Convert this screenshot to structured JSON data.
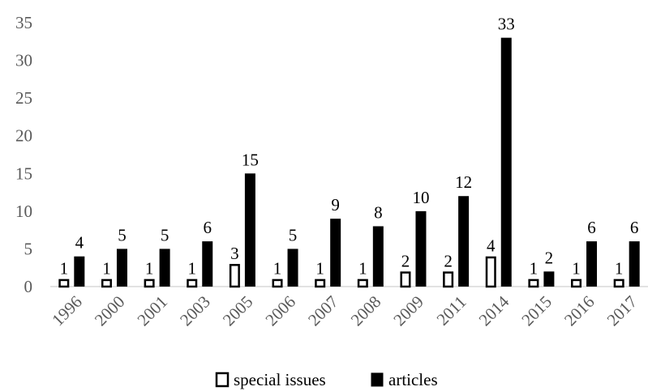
{
  "chart_data": {
    "type": "bar",
    "categories": [
      "1996",
      "2000",
      "2001",
      "2003",
      "2005",
      "2006",
      "2007",
      "2008",
      "2009",
      "2011",
      "2014",
      "2015",
      "2016",
      "2017"
    ],
    "series": [
      {
        "name": "special issues",
        "values": [
          1,
          1,
          1,
          1,
          3,
          1,
          1,
          1,
          2,
          2,
          4,
          1,
          1,
          1
        ]
      },
      {
        "name": "articles",
        "values": [
          4,
          5,
          5,
          6,
          15,
          5,
          9,
          8,
          10,
          12,
          33,
          2,
          6,
          6
        ]
      }
    ],
    "title": "",
    "xlabel": "",
    "ylabel": "",
    "ylim": [
      0,
      35
    ],
    "yticks": [
      0,
      5,
      10,
      15,
      20,
      25,
      30,
      35
    ],
    "grid": false,
    "legend_position": "bottom",
    "colors": {
      "special issues": "#ffffff",
      "articles": "#000000",
      "outline": "#000000",
      "axis": "#d9d9d9"
    }
  }
}
